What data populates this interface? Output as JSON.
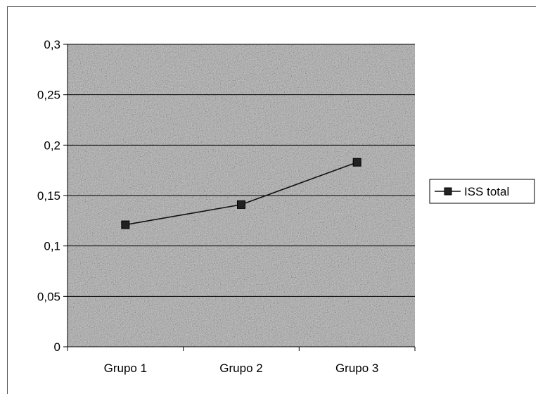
{
  "chart_data": {
    "type": "line",
    "categories": [
      "Grupo 1",
      "Grupo 2",
      "Grupo 3"
    ],
    "y_ticks": [
      "0",
      "0,05",
      "0,1",
      "0,15",
      "0,2",
      "0,25",
      "0,3"
    ],
    "series": [
      {
        "name": "ISS total",
        "values": [
          0.121,
          0.141,
          0.183
        ]
      }
    ],
    "title": "",
    "xlabel": "",
    "ylabel": "",
    "ylim": [
      0,
      0.3
    ],
    "grid": true,
    "legend": "right",
    "colors": {
      "line": "#111111",
      "marker": "#222222",
      "plot_bg": "#b5b5b5",
      "grid": "#000000"
    }
  }
}
